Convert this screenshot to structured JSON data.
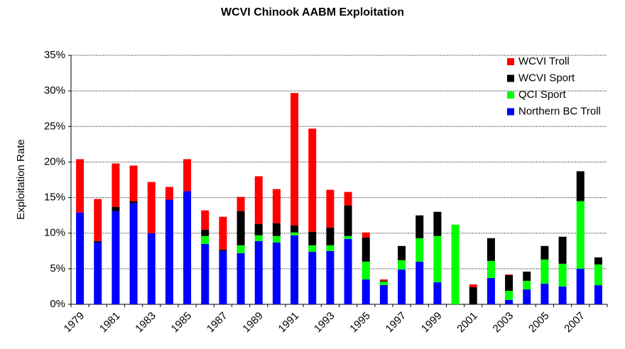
{
  "chart_data": {
    "type": "stacked_bar",
    "title": "WCVI Chinook AABM Exploitation",
    "y_label": "Exploitation Rate",
    "categories": [
      "1979",
      null,
      "1981",
      null,
      "1983",
      null,
      "1985",
      null,
      "1987",
      null,
      "1989",
      null,
      "1991",
      null,
      "1993",
      null,
      "1995",
      null,
      "1997",
      null,
      "1999",
      null,
      "2001",
      null,
      "2003",
      null,
      "2005",
      null,
      "2007",
      null
    ],
    "series": [
      {
        "name": "Northern BC Troll",
        "color": "#0000ff",
        "values": [
          12.9,
          8.7,
          13.1,
          14.2,
          10.0,
          14.7,
          15.9,
          8.5,
          7.5,
          7.2,
          8.9,
          8.7,
          9.7,
          7.4,
          7.5,
          9.2,
          3.5,
          2.7,
          4.9,
          6.0,
          3.1,
          0,
          0,
          3.7,
          0.6,
          2.1,
          2.9,
          2.5,
          5.0,
          2.7
        ]
      },
      {
        "name": "QCI Sport",
        "color": "#00ff00",
        "values": [
          0,
          0,
          0,
          0,
          0,
          0,
          0,
          1.1,
          0,
          1.1,
          0.8,
          0.9,
          0.4,
          0.9,
          0.8,
          0.4,
          2.5,
          0.5,
          1.3,
          3.3,
          6.5,
          11.2,
          0,
          2.4,
          1.3,
          1.2,
          3.4,
          3.2,
          9.5,
          2.9
        ]
      },
      {
        "name": "WCVI Sport",
        "color": "#000000",
        "values": [
          0,
          0.2,
          0.6,
          0.3,
          0,
          0,
          0,
          0.9,
          0.2,
          4.8,
          1.6,
          1.8,
          1.0,
          1.9,
          2.5,
          4.3,
          3.4,
          0.1,
          2.0,
          3.2,
          3.4,
          0,
          2.4,
          3.2,
          2.2,
          1.3,
          1.9,
          3.8,
          4.2,
          1.0
        ]
      },
      {
        "name": "WCVI Troll",
        "color": "#ff0000",
        "values": [
          7.5,
          5.9,
          6.1,
          5.0,
          7.2,
          1.8,
          4.5,
          2.7,
          4.6,
          2.0,
          6.7,
          4.8,
          18.6,
          14.5,
          5.3,
          1.9,
          0.7,
          0.2,
          0,
          0,
          0,
          0,
          0.4,
          0,
          0.1,
          0,
          0,
          0,
          0,
          0
        ]
      }
    ],
    "ylim": [
      0,
      35
    ],
    "yticks": [
      {
        "value": 0,
        "label": "0%"
      },
      {
        "value": 5,
        "label": "5%"
      },
      {
        "value": 10,
        "label": "10%"
      },
      {
        "value": 15,
        "label": "15%"
      },
      {
        "value": 20,
        "label": "20%"
      },
      {
        "value": 25,
        "label": "25%"
      },
      {
        "value": 30,
        "label": "30%"
      },
      {
        "value": 35,
        "label": "35%"
      }
    ],
    "grid": true,
    "legend": "top-right"
  }
}
